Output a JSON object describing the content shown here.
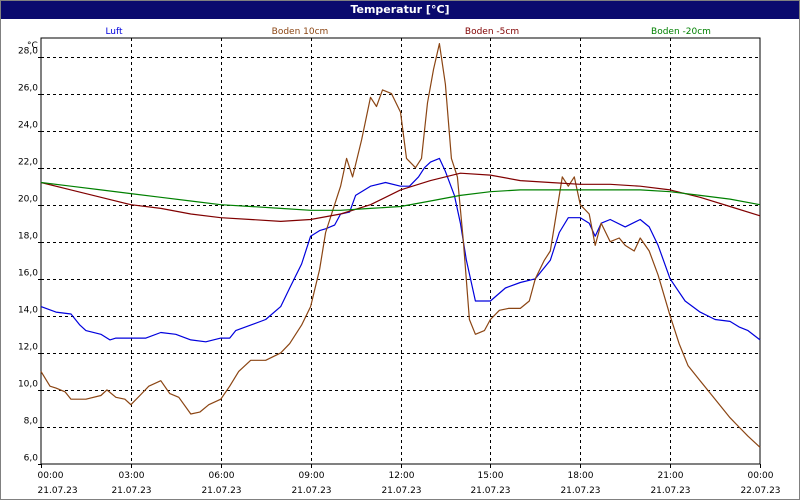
{
  "title": "Temperatur [°C]",
  "chart_data": {
    "type": "line",
    "title": "Temperatur [°C]",
    "ylabel": "°C",
    "xlabel": "",
    "ylim": [
      6.0,
      29.0
    ],
    "yticks": [
      "6,0",
      "8,0",
      "10,0",
      "12,0",
      "14,0",
      "16,0",
      "18,0",
      "20,0",
      "22,0",
      "24,0",
      "26,0",
      "28,0"
    ],
    "ytick_values": [
      6,
      8,
      10,
      12,
      14,
      16,
      18,
      20,
      22,
      24,
      26,
      28
    ],
    "xlim": [
      0,
      24
    ],
    "xticks": [
      {
        "time": "00:00",
        "date": "21.07.23"
      },
      {
        "time": "03:00",
        "date": "21.07.23"
      },
      {
        "time": "06:00",
        "date": "21.07.23"
      },
      {
        "time": "09:00",
        "date": "21.07.23"
      },
      {
        "time": "12:00",
        "date": "21.07.23"
      },
      {
        "time": "15:00",
        "date": "21.07.23"
      },
      {
        "time": "18:00",
        "date": "21.07.23"
      },
      {
        "time": "21:00",
        "date": "21.07.23"
      },
      {
        "time": "00:00",
        "date": "22.07.23"
      }
    ],
    "xtick_hours": [
      0,
      3,
      6,
      9,
      12,
      15,
      18,
      21,
      24
    ],
    "grid": true,
    "legend_placement": "top",
    "series": [
      {
        "name": "Luft",
        "color": "#0000dd",
        "points": [
          [
            0,
            14.5
          ],
          [
            0.5,
            14.2
          ],
          [
            1,
            14.1
          ],
          [
            1.3,
            13.5
          ],
          [
            1.5,
            13.2
          ],
          [
            2,
            13.0
          ],
          [
            2.3,
            12.7
          ],
          [
            2.5,
            12.8
          ],
          [
            3,
            12.8
          ],
          [
            3.5,
            12.8
          ],
          [
            4,
            13.1
          ],
          [
            4.5,
            13.0
          ],
          [
            5,
            12.7
          ],
          [
            5.5,
            12.6
          ],
          [
            6,
            12.8
          ],
          [
            6.3,
            12.8
          ],
          [
            6.5,
            13.2
          ],
          [
            7,
            13.5
          ],
          [
            7.5,
            13.8
          ],
          [
            8,
            14.5
          ],
          [
            8.3,
            15.5
          ],
          [
            8.7,
            16.8
          ],
          [
            9,
            18.3
          ],
          [
            9.3,
            18.6
          ],
          [
            9.5,
            18.7
          ],
          [
            9.8,
            18.9
          ],
          [
            10,
            19.5
          ],
          [
            10.3,
            19.6
          ],
          [
            10.5,
            20.5
          ],
          [
            11,
            21.0
          ],
          [
            11.5,
            21.2
          ],
          [
            12,
            21.0
          ],
          [
            12.3,
            21.0
          ],
          [
            12.6,
            21.5
          ],
          [
            12.8,
            22.0
          ],
          [
            13,
            22.3
          ],
          [
            13.3,
            22.5
          ],
          [
            13.5,
            21.8
          ],
          [
            13.8,
            20.5
          ],
          [
            14,
            19.0
          ],
          [
            14.2,
            17.0
          ],
          [
            14.5,
            14.8
          ],
          [
            15,
            14.8
          ],
          [
            15.5,
            15.5
          ],
          [
            16,
            15.8
          ],
          [
            16.5,
            16.0
          ],
          [
            17,
            17.0
          ],
          [
            17.3,
            18.5
          ],
          [
            17.6,
            19.3
          ],
          [
            18,
            19.3
          ],
          [
            18.3,
            19.0
          ],
          [
            18.5,
            18.3
          ],
          [
            18.7,
            19.0
          ],
          [
            19,
            19.2
          ],
          [
            19.5,
            18.8
          ],
          [
            20,
            19.2
          ],
          [
            20.3,
            18.8
          ],
          [
            20.6,
            17.8
          ],
          [
            21,
            16.0
          ],
          [
            21.5,
            14.8
          ],
          [
            22,
            14.2
          ],
          [
            22.5,
            13.8
          ],
          [
            23,
            13.7
          ],
          [
            23.3,
            13.4
          ],
          [
            23.6,
            13.2
          ],
          [
            24,
            12.7
          ]
        ]
      },
      {
        "name": "Boden 10cm",
        "color": "#8b4513",
        "points": [
          [
            0,
            11.0
          ],
          [
            0.3,
            10.2
          ],
          [
            0.5,
            10.1
          ],
          [
            0.8,
            9.9
          ],
          [
            1,
            9.5
          ],
          [
            1.5,
            9.5
          ],
          [
            2,
            9.7
          ],
          [
            2.2,
            10.0
          ],
          [
            2.5,
            9.6
          ],
          [
            2.8,
            9.5
          ],
          [
            3,
            9.2
          ],
          [
            3.3,
            9.7
          ],
          [
            3.6,
            10.2
          ],
          [
            4,
            10.5
          ],
          [
            4.3,
            9.8
          ],
          [
            4.6,
            9.6
          ],
          [
            5,
            8.7
          ],
          [
            5.3,
            8.8
          ],
          [
            5.6,
            9.2
          ],
          [
            6,
            9.5
          ],
          [
            6.3,
            10.2
          ],
          [
            6.6,
            11.0
          ],
          [
            7,
            11.6
          ],
          [
            7.5,
            11.6
          ],
          [
            8,
            12.0
          ],
          [
            8.3,
            12.5
          ],
          [
            8.7,
            13.5
          ],
          [
            9,
            14.5
          ],
          [
            9.3,
            16.5
          ],
          [
            9.5,
            18.5
          ],
          [
            9.8,
            20.0
          ],
          [
            10,
            21.0
          ],
          [
            10.2,
            22.5
          ],
          [
            10.4,
            21.5
          ],
          [
            10.7,
            23.5
          ],
          [
            11,
            25.8
          ],
          [
            11.2,
            25.3
          ],
          [
            11.4,
            26.2
          ],
          [
            11.7,
            26.0
          ],
          [
            12,
            25.0
          ],
          [
            12.2,
            22.5
          ],
          [
            12.5,
            22.0
          ],
          [
            12.7,
            22.5
          ],
          [
            12.9,
            25.5
          ],
          [
            13.1,
            27.3
          ],
          [
            13.3,
            28.7
          ],
          [
            13.5,
            26.5
          ],
          [
            13.7,
            22.5
          ],
          [
            13.9,
            21.5
          ],
          [
            14.1,
            18.0
          ],
          [
            14.3,
            13.8
          ],
          [
            14.5,
            13.0
          ],
          [
            14.8,
            13.2
          ],
          [
            15,
            13.8
          ],
          [
            15.3,
            14.3
          ],
          [
            15.6,
            14.4
          ],
          [
            16,
            14.4
          ],
          [
            16.3,
            14.8
          ],
          [
            16.5,
            16.0
          ],
          [
            16.8,
            17.0
          ],
          [
            17,
            17.5
          ],
          [
            17.2,
            19.5
          ],
          [
            17.4,
            21.5
          ],
          [
            17.6,
            21.0
          ],
          [
            17.8,
            21.5
          ],
          [
            18,
            20.0
          ],
          [
            18.3,
            19.5
          ],
          [
            18.5,
            17.8
          ],
          [
            18.7,
            19.0
          ],
          [
            19,
            18.0
          ],
          [
            19.3,
            18.2
          ],
          [
            19.5,
            17.8
          ],
          [
            19.8,
            17.5
          ],
          [
            20,
            18.2
          ],
          [
            20.3,
            17.5
          ],
          [
            20.6,
            16.2
          ],
          [
            21,
            14.0
          ],
          [
            21.3,
            12.5
          ],
          [
            21.6,
            11.3
          ],
          [
            22,
            10.5
          ],
          [
            22.5,
            9.5
          ],
          [
            23,
            8.5
          ],
          [
            23.3,
            8.0
          ],
          [
            23.6,
            7.5
          ],
          [
            24,
            6.9
          ]
        ]
      },
      {
        "name": "Boden -5cm",
        "color": "#800000",
        "points": [
          [
            0,
            21.2
          ],
          [
            1,
            20.8
          ],
          [
            2,
            20.4
          ],
          [
            3,
            20.0
          ],
          [
            4,
            19.8
          ],
          [
            5,
            19.5
          ],
          [
            6,
            19.3
          ],
          [
            7,
            19.2
          ],
          [
            8,
            19.1
          ],
          [
            9,
            19.2
          ],
          [
            10,
            19.5
          ],
          [
            11,
            20.0
          ],
          [
            12,
            20.8
          ],
          [
            13,
            21.3
          ],
          [
            14,
            21.7
          ],
          [
            15,
            21.6
          ],
          [
            16,
            21.3
          ],
          [
            17,
            21.2
          ],
          [
            18,
            21.1
          ],
          [
            19,
            21.1
          ],
          [
            20,
            21.0
          ],
          [
            21,
            20.8
          ],
          [
            22,
            20.4
          ],
          [
            23,
            19.9
          ],
          [
            24,
            19.4
          ]
        ]
      },
      {
        "name": "Boden -20cm",
        "color": "#008000",
        "points": [
          [
            0,
            21.2
          ],
          [
            1,
            21.0
          ],
          [
            2,
            20.8
          ],
          [
            3,
            20.6
          ],
          [
            4,
            20.4
          ],
          [
            5,
            20.2
          ],
          [
            6,
            20.0
          ],
          [
            7,
            19.9
          ],
          [
            8,
            19.8
          ],
          [
            9,
            19.7
          ],
          [
            10,
            19.7
          ],
          [
            11,
            19.8
          ],
          [
            12,
            19.9
          ],
          [
            13,
            20.2
          ],
          [
            14,
            20.5
          ],
          [
            15,
            20.7
          ],
          [
            16,
            20.8
          ],
          [
            17,
            20.8
          ],
          [
            18,
            20.8
          ],
          [
            19,
            20.8
          ],
          [
            20,
            20.8
          ],
          [
            21,
            20.7
          ],
          [
            22,
            20.5
          ],
          [
            23,
            20.3
          ],
          [
            24,
            20.0
          ]
        ]
      }
    ]
  }
}
